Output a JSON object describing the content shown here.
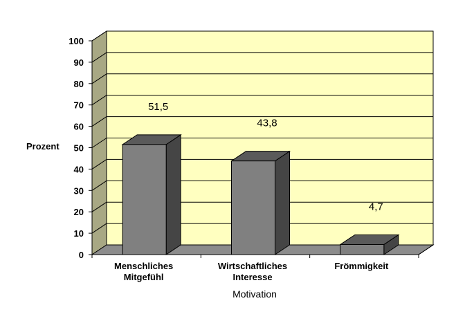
{
  "chart_data": {
    "type": "bar",
    "style": "3d-column",
    "categories": [
      [
        "Menschliches",
        "Mitgefühl"
      ],
      [
        "Wirtschaftliches",
        "Interesse"
      ],
      [
        "Frömmigkeit"
      ]
    ],
    "values": [
      51.5,
      43.8,
      4.7
    ],
    "data_labels": [
      "51,5",
      "43,8",
      "4,7"
    ],
    "xlabel": "Motivation",
    "ylabel": "Prozent",
    "ylim": [
      0,
      100
    ],
    "yticks": [
      0,
      10,
      20,
      30,
      40,
      50,
      60,
      70,
      80,
      90,
      100
    ],
    "grid": true,
    "colors": {
      "wall": "#ffffc0",
      "side_wall": "#a8a884",
      "floor": "#8c8c8c",
      "bar_front": "#808080",
      "bar_top": "#5a5a5a",
      "bar_side": "#454545",
      "gridline": "#000000"
    }
  }
}
